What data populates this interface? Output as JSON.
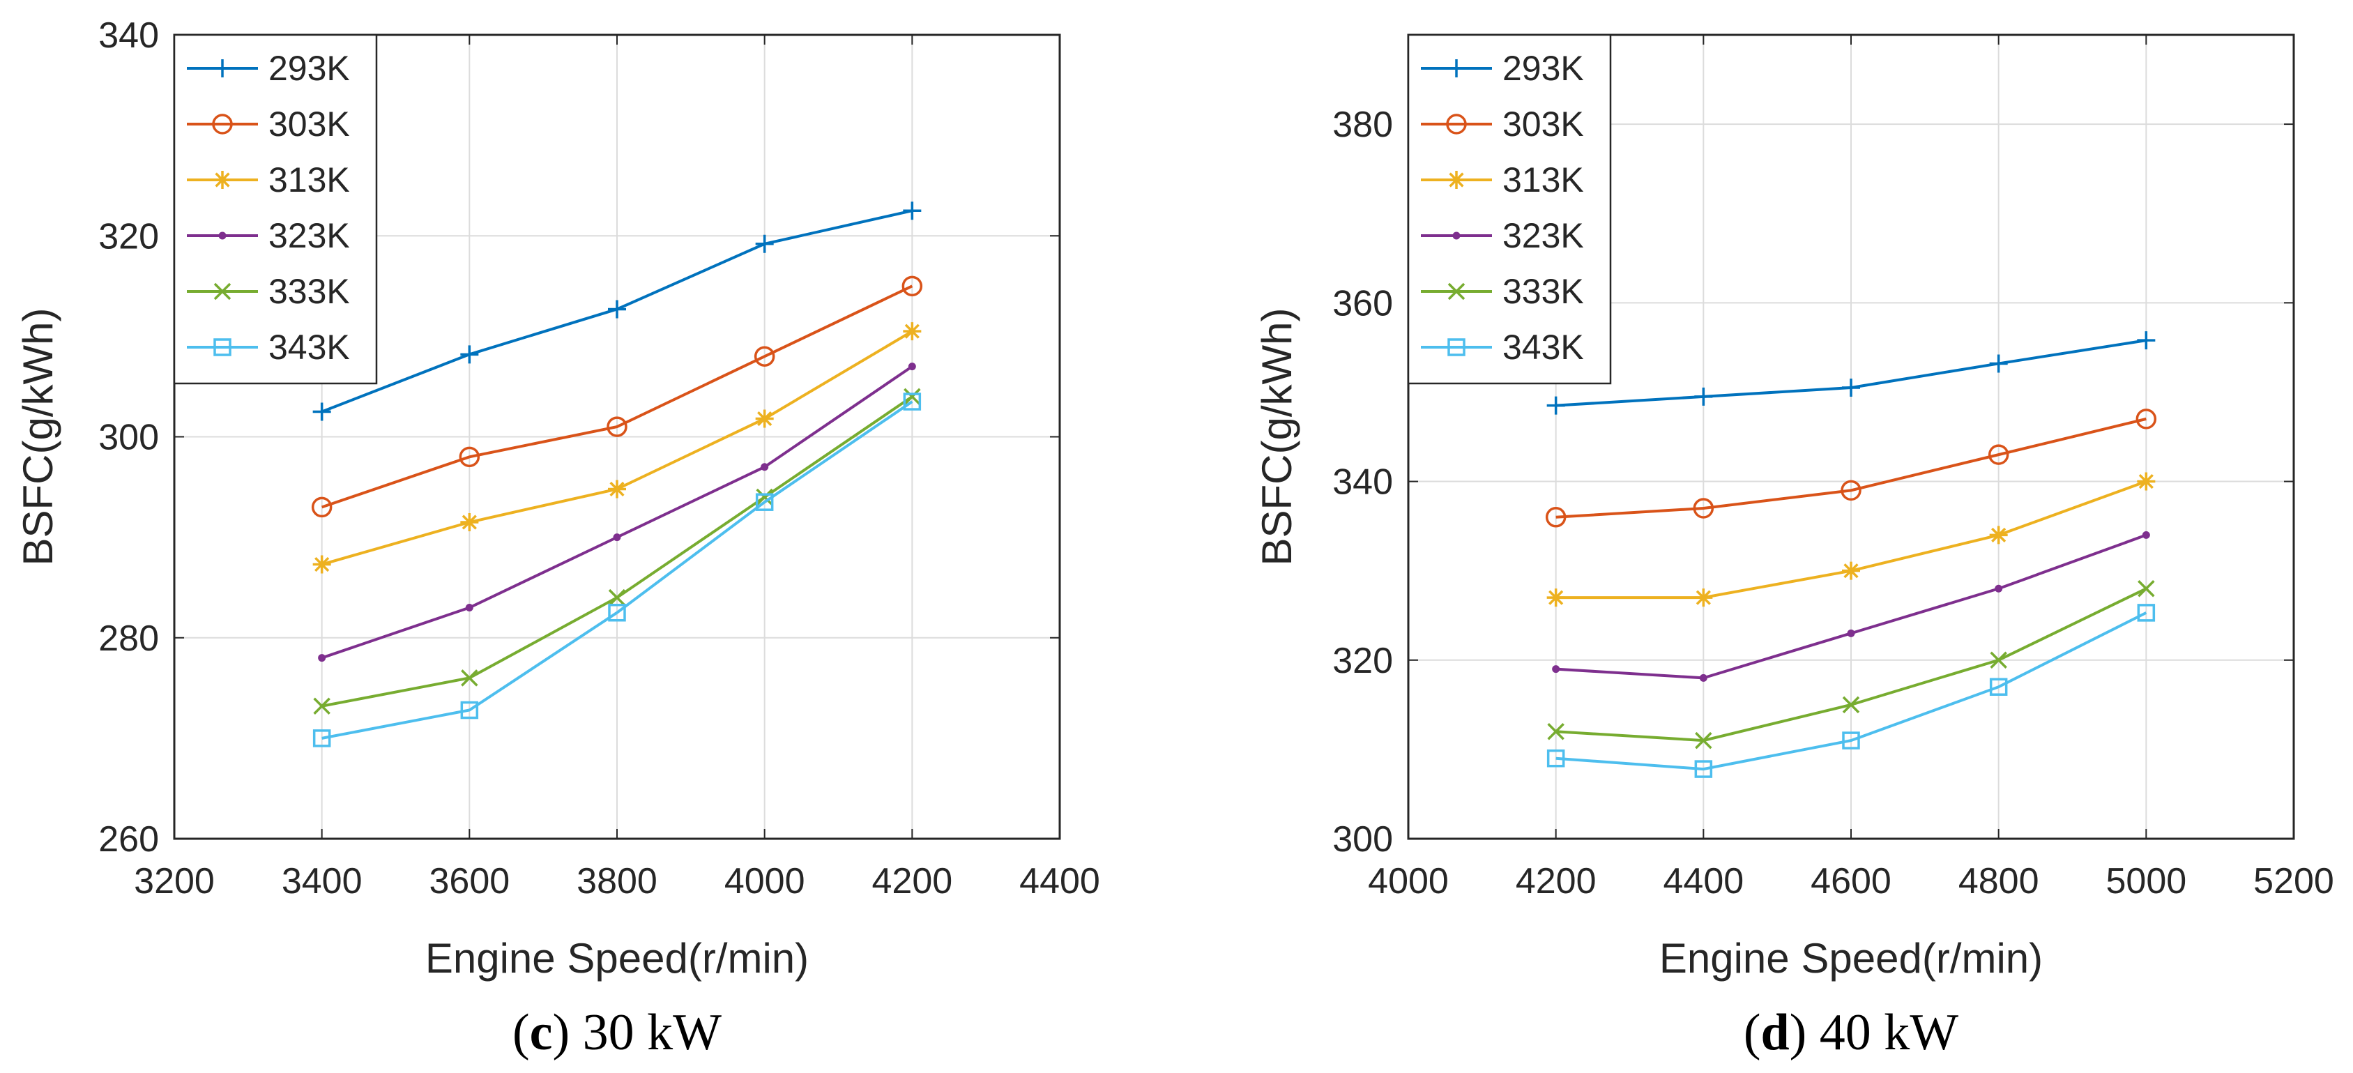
{
  "chart_data": [
    {
      "type": "line",
      "id": "c",
      "caption_letter": "c",
      "caption_rest": " 30 kW",
      "xlabel": "Engine Speed(r/min)",
      "ylabel": "BSFC(g/kWh)",
      "xlim": [
        3200,
        4400
      ],
      "ylim": [
        260,
        340
      ],
      "xticks": [
        3200,
        3400,
        3600,
        3800,
        4000,
        4200,
        4400
      ],
      "yticks": [
        260,
        280,
        300,
        320,
        340
      ],
      "grid": true,
      "legend_position": "top-left",
      "x": [
        3400,
        3600,
        3800,
        4000,
        4200
      ],
      "series": [
        {
          "name": "293K",
          "color": "#0072BD",
          "marker": "plus",
          "values": [
            302.5,
            308.2,
            312.7,
            319.2,
            322.5
          ]
        },
        {
          "name": "303K",
          "color": "#D95319",
          "marker": "circle",
          "values": [
            293.0,
            298.0,
            301.0,
            308.0,
            315.0
          ]
        },
        {
          "name": "313K",
          "color": "#EDB120",
          "marker": "asterisk",
          "values": [
            287.3,
            291.5,
            294.8,
            301.8,
            310.5
          ]
        },
        {
          "name": "323K",
          "color": "#7E2F8E",
          "marker": "dot",
          "values": [
            278.0,
            283.0,
            290.0,
            297.0,
            307.0
          ]
        },
        {
          "name": "333K",
          "color": "#77AC30",
          "marker": "x",
          "values": [
            273.2,
            276.0,
            284.0,
            294.0,
            304.0
          ]
        },
        {
          "name": "343K",
          "color": "#4DBEEE",
          "marker": "square",
          "values": [
            270.0,
            272.8,
            282.5,
            293.5,
            303.5
          ]
        }
      ]
    },
    {
      "type": "line",
      "id": "d",
      "caption_letter": "d",
      "caption_rest": " 40 kW",
      "xlabel": "Engine Speed(r/min)",
      "ylabel": "BSFC(g/kWh)",
      "xlim": [
        4000,
        5200
      ],
      "ylim": [
        300,
        390
      ],
      "xticks": [
        4000,
        4200,
        4400,
        4600,
        4800,
        5000,
        5200
      ],
      "yticks": [
        300,
        320,
        340,
        360,
        380
      ],
      "grid": true,
      "legend_position": "top-left",
      "x": [
        4200,
        4400,
        4600,
        4800,
        5000
      ],
      "series": [
        {
          "name": "293K",
          "color": "#0072BD",
          "marker": "plus",
          "values": [
            348.5,
            349.5,
            350.5,
            353.2,
            355.8
          ]
        },
        {
          "name": "303K",
          "color": "#D95319",
          "marker": "circle",
          "values": [
            336.0,
            337.0,
            339.0,
            343.0,
            347.0
          ]
        },
        {
          "name": "313K",
          "color": "#EDB120",
          "marker": "asterisk",
          "values": [
            327.0,
            327.0,
            330.0,
            334.0,
            340.0
          ]
        },
        {
          "name": "323K",
          "color": "#7E2F8E",
          "marker": "dot",
          "values": [
            319.0,
            318.0,
            323.0,
            328.0,
            334.0
          ]
        },
        {
          "name": "333K",
          "color": "#77AC30",
          "marker": "x",
          "values": [
            312.0,
            311.0,
            315.0,
            320.0,
            328.0
          ]
        },
        {
          "name": "343K",
          "color": "#4DBEEE",
          "marker": "square",
          "values": [
            309.0,
            307.8,
            311.0,
            317.0,
            325.3
          ]
        }
      ]
    }
  ]
}
